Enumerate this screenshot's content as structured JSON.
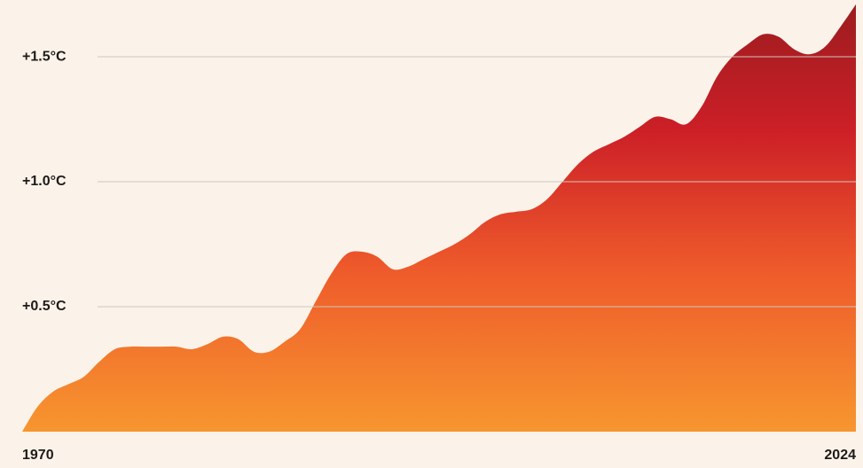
{
  "chart_data": {
    "type": "area",
    "x": [
      1970,
      1971,
      1972,
      1973,
      1974,
      1975,
      1976,
      1977,
      1978,
      1979,
      1980,
      1981,
      1982,
      1983,
      1984,
      1985,
      1986,
      1987,
      1988,
      1989,
      1990,
      1991,
      1992,
      1993,
      1994,
      1995,
      1996,
      1997,
      1998,
      1999,
      2000,
      2001,
      2002,
      2003,
      2004,
      2005,
      2006,
      2007,
      2008,
      2009,
      2010,
      2011,
      2012,
      2013,
      2014,
      2015,
      2016,
      2017,
      2018,
      2019,
      2020,
      2021,
      2022,
      2023,
      2024
    ],
    "values": [
      0.0,
      0.1,
      0.16,
      0.19,
      0.22,
      0.28,
      0.33,
      0.34,
      0.34,
      0.34,
      0.34,
      0.33,
      0.35,
      0.38,
      0.37,
      0.32,
      0.32,
      0.36,
      0.41,
      0.52,
      0.63,
      0.71,
      0.72,
      0.7,
      0.65,
      0.66,
      0.69,
      0.72,
      0.75,
      0.79,
      0.84,
      0.87,
      0.88,
      0.89,
      0.93,
      1.0,
      1.07,
      1.12,
      1.15,
      1.18,
      1.22,
      1.26,
      1.25,
      1.23,
      1.3,
      1.42,
      1.5,
      1.55,
      1.59,
      1.58,
      1.53,
      1.51,
      1.54,
      1.62,
      1.71
    ],
    "colors": [
      "#9b1c1f",
      "#cc1f27",
      "#ee5a2b",
      "#f7962f"
    ],
    "xlim": [
      1970,
      2024
    ],
    "xticks": [
      1970,
      2024
    ],
    "ylim": [
      0,
      1.72
    ],
    "yticks": [
      {
        "value": 0.5,
        "label": "+0.5°C"
      },
      {
        "value": 1.0,
        "label": "+1.0°C"
      },
      {
        "value": 1.5,
        "label": "+1.5°C"
      }
    ],
    "grid": true
  }
}
